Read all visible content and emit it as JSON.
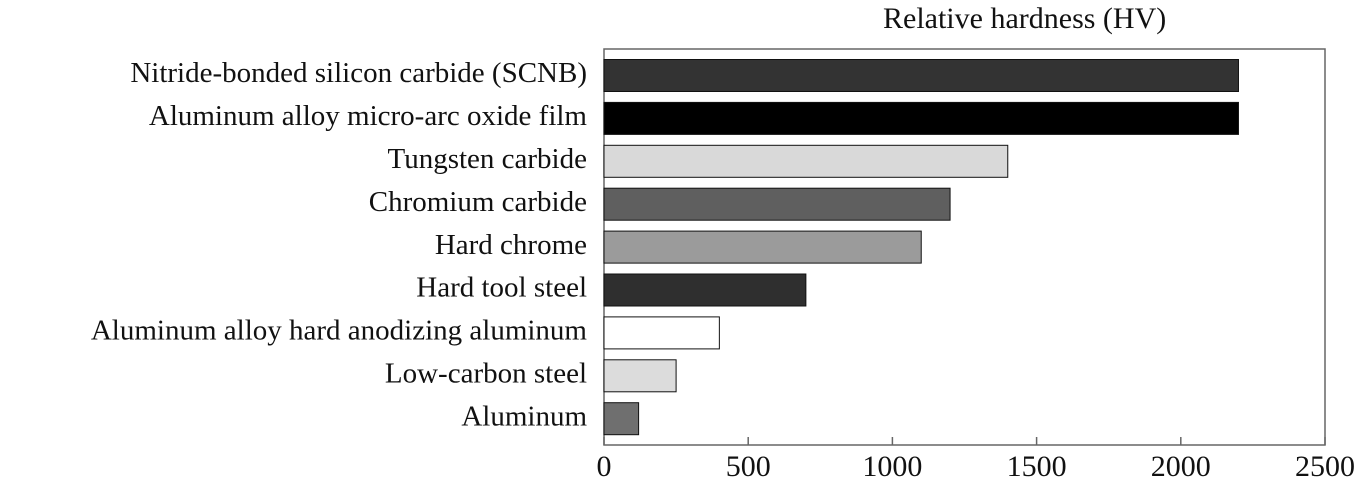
{
  "chart_data": {
    "type": "bar",
    "orientation": "horizontal",
    "title": "Relative hardness (HV)",
    "xlabel": "",
    "ylabel": "",
    "categories": [
      "Nitride-bonded silicon carbide (SCNB)",
      "Aluminum alloy micro-arc oxide film",
      "Tungsten carbide",
      "Chromium carbide",
      "Hard chrome",
      "Hard tool steel",
      "Aluminum alloy hard anodizing aluminum",
      "Low-carbon steel",
      "Aluminum"
    ],
    "values": [
      2200,
      2200,
      1400,
      1200,
      1100,
      700,
      400,
      250,
      120
    ],
    "xlim": [
      0,
      2500
    ],
    "xticks": [
      "0",
      "500",
      "1000",
      "1500",
      "2000",
      "2500"
    ],
    "grid": false,
    "bar_colors": [
      "#333333",
      "#000000",
      "#d9d9d9",
      "#5f5f5f",
      "#9b9b9b",
      "#2f2f2f",
      "#ffffff",
      "#dcdcdc",
      "#6f6f6f"
    ]
  }
}
